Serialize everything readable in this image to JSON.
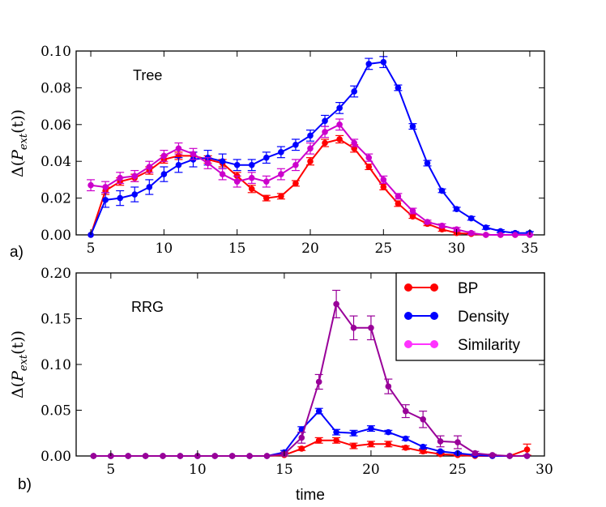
{
  "figure": {
    "xlabel": "time",
    "ylabel": "Δ(P_ext(t))",
    "ylabel_main": "Δ(",
    "ylabel_sym": "P",
    "ylabel_sub": "ext",
    "ylabel_tail": "(t))"
  },
  "chart_data": [
    {
      "type": "line",
      "panel_label": "a)",
      "title": "Tree",
      "xlim": [
        4,
        36
      ],
      "ylim": [
        0,
        0.1
      ],
      "xticks": [
        "5",
        "10",
        "15",
        "20",
        "25",
        "30",
        "35"
      ],
      "xtick_values": [
        5,
        10,
        15,
        20,
        25,
        30,
        35
      ],
      "yticks": [
        "0.00",
        "0.02",
        "0.04",
        "0.06",
        "0.08",
        "0.10"
      ],
      "ytick_values": [
        0,
        0.02,
        0.04,
        0.06,
        0.08,
        0.1
      ],
      "series": [
        {
          "name": "BP",
          "color": "#ff0000",
          "x": [
            5,
            6,
            7,
            8,
            9,
            10,
            11,
            12,
            13,
            14,
            15,
            16,
            17,
            18,
            19,
            20,
            21,
            22,
            23,
            24,
            25,
            26,
            27,
            28,
            29,
            30,
            31,
            32,
            33,
            34,
            35
          ],
          "y": [
            0,
            0.024,
            0.029,
            0.031,
            0.035,
            0.041,
            0.043,
            0.043,
            0.041,
            0.039,
            0.032,
            0.025,
            0.02,
            0.021,
            0.028,
            0.04,
            0.05,
            0.052,
            0.047,
            0.037,
            0.026,
            0.017,
            0.01,
            0.006,
            0.003,
            0.001,
            0.0005,
            0,
            0,
            0,
            0
          ],
          "err": [
            0,
            0.002,
            0.002,
            0.002,
            0.002,
            0.002,
            0.002,
            0.002,
            0.002,
            0.002,
            0.002,
            0.002,
            0.0015,
            0.0015,
            0.0015,
            0.002,
            0.002,
            0.002,
            0.002,
            0.0015,
            0.0015,
            0.0015,
            0.001,
            0.001,
            0.001,
            0.0008,
            0.0005,
            0.0003,
            0.0002,
            0.0002,
            0.0002
          ]
        },
        {
          "name": "Density",
          "color": "#0000ff",
          "x": [
            5,
            6,
            7,
            8,
            9,
            10,
            11,
            12,
            13,
            14,
            15,
            16,
            17,
            18,
            19,
            20,
            21,
            22,
            23,
            24,
            25,
            26,
            27,
            28,
            29,
            30,
            31,
            32,
            33,
            34,
            35
          ],
          "y": [
            0,
            0.019,
            0.02,
            0.022,
            0.026,
            0.033,
            0.038,
            0.041,
            0.042,
            0.04,
            0.038,
            0.038,
            0.042,
            0.045,
            0.049,
            0.054,
            0.062,
            0.069,
            0.078,
            0.093,
            0.094,
            0.08,
            0.059,
            0.039,
            0.024,
            0.014,
            0.009,
            0.004,
            0.002,
            0.001,
            0.001
          ],
          "err": [
            0,
            0.004,
            0.004,
            0.004,
            0.004,
            0.004,
            0.004,
            0.004,
            0.004,
            0.004,
            0.003,
            0.003,
            0.003,
            0.003,
            0.003,
            0.003,
            0.003,
            0.003,
            0.003,
            0.003,
            0.003,
            0.0015,
            0.0015,
            0.0015,
            0.001,
            0.001,
            0.001,
            0.001,
            0.0008,
            0.0008,
            0.0008
          ]
        },
        {
          "name": "Similarity",
          "color": "#cc00cc",
          "x": [
            5,
            6,
            7,
            8,
            9,
            10,
            11,
            12,
            13,
            14,
            15,
            16,
            17,
            18,
            19,
            20,
            21,
            22,
            23,
            24,
            25,
            26,
            27,
            28,
            29,
            30,
            31,
            32,
            33,
            34,
            35
          ],
          "y": [
            0.027,
            0.026,
            0.031,
            0.032,
            0.037,
            0.043,
            0.047,
            0.044,
            0.039,
            0.033,
            0.029,
            0.031,
            0.029,
            0.033,
            0.038,
            0.047,
            0.056,
            0.06,
            0.05,
            0.042,
            0.03,
            0.021,
            0.013,
            0.007,
            0.005,
            0.003,
            0.001,
            0,
            0,
            0,
            0
          ],
          "err": [
            0.003,
            0.003,
            0.003,
            0.003,
            0.003,
            0.003,
            0.003,
            0.003,
            0.003,
            0.003,
            0.003,
            0.003,
            0.003,
            0.003,
            0.003,
            0.003,
            0.003,
            0.003,
            0.002,
            0.002,
            0.002,
            0.0015,
            0.0015,
            0.001,
            0.001,
            0.001,
            0.0008,
            0.0003,
            0.0002,
            0.0002,
            0.0002
          ]
        }
      ]
    },
    {
      "type": "line",
      "panel_label": "b)",
      "title": "RRG",
      "xlim": [
        3,
        30
      ],
      "ylim": [
        0,
        0.2
      ],
      "xticks": [
        "5",
        "10",
        "15",
        "20",
        "25",
        "30"
      ],
      "xtick_values": [
        5,
        10,
        15,
        20,
        25,
        30
      ],
      "yticks": [
        "0.00",
        "0.05",
        "0.10",
        "0.15",
        "0.20"
      ],
      "ytick_values": [
        0,
        0.05,
        0.1,
        0.15,
        0.2
      ],
      "legend": {
        "position": "upper right",
        "entries": [
          "BP",
          "Density",
          "Similarity"
        ]
      },
      "series": [
        {
          "name": "BP",
          "color": "#ff0000",
          "x": [
            4,
            5,
            6,
            7,
            8,
            9,
            10,
            11,
            12,
            13,
            14,
            15,
            16,
            17,
            18,
            19,
            20,
            21,
            22,
            23,
            24,
            25,
            26,
            27,
            28,
            29
          ],
          "y": [
            0,
            0,
            0,
            0,
            0,
            0,
            0,
            0,
            0,
            0,
            0,
            0.001,
            0.008,
            0.017,
            0.017,
            0.011,
            0.013,
            0.013,
            0.009,
            0.005,
            0.002,
            0.001,
            0,
            0,
            0,
            0.007
          ],
          "err": [
            0,
            0,
            0,
            0,
            0,
            0,
            0,
            0,
            0,
            0,
            0,
            0.001,
            0.002,
            0.003,
            0.003,
            0.003,
            0.003,
            0.003,
            0.002,
            0.002,
            0.001,
            0.001,
            0,
            0,
            0,
            0.006
          ]
        },
        {
          "name": "Density",
          "color": "#0000ff",
          "x": [
            4,
            5,
            6,
            7,
            8,
            9,
            10,
            11,
            12,
            13,
            14,
            15,
            16,
            17,
            18,
            19,
            20,
            21,
            22,
            23,
            24,
            25,
            26,
            27,
            28,
            29
          ],
          "y": [
            0,
            0,
            0,
            0,
            0,
            0,
            0,
            0,
            0,
            0,
            0,
            0.004,
            0.029,
            0.049,
            0.026,
            0.025,
            0.03,
            0.026,
            0.019,
            0.01,
            0.005,
            0.003,
            0.001,
            0,
            0,
            0
          ],
          "err": [
            0,
            0,
            0,
            0,
            0,
            0,
            0,
            0,
            0,
            0,
            0,
            0.002,
            0.003,
            0.003,
            0.003,
            0.003,
            0.003,
            0.002,
            0.002,
            0.002,
            0.001,
            0.001,
            0.001,
            0,
            0,
            0
          ]
        },
        {
          "name": "Similarity",
          "color": "#990099",
          "x": [
            4,
            5,
            6,
            7,
            8,
            9,
            10,
            11,
            12,
            13,
            14,
            15,
            16,
            17,
            18,
            19,
            20,
            21,
            22,
            23,
            24,
            25,
            26,
            27,
            28,
            29
          ],
          "y": [
            0,
            0,
            0,
            0,
            0,
            0,
            0,
            0,
            0,
            0,
            0,
            0.002,
            0.02,
            0.081,
            0.166,
            0.14,
            0.14,
            0.076,
            0.049,
            0.04,
            0.016,
            0.015,
            0.003,
            0.001,
            0,
            0
          ],
          "err": [
            0,
            0,
            0,
            0,
            0,
            0,
            0,
            0,
            0,
            0,
            0,
            0.002,
            0.006,
            0.008,
            0.015,
            0.013,
            0.013,
            0.008,
            0.007,
            0.009,
            0.006,
            0.007,
            0.002,
            0.001,
            0,
            0
          ]
        }
      ]
    }
  ]
}
